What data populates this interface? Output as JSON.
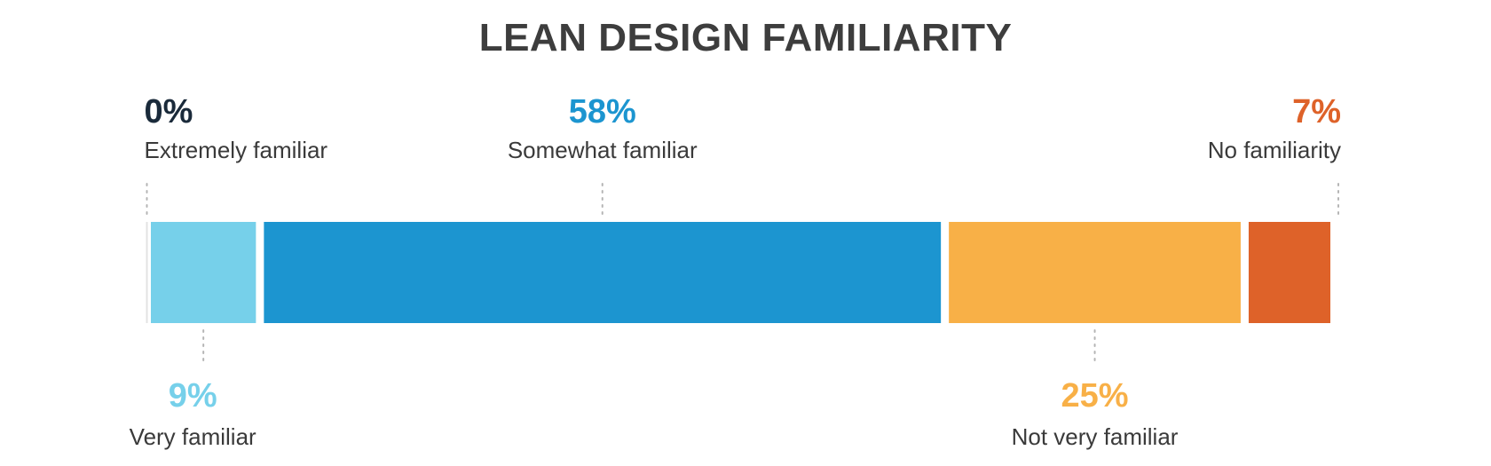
{
  "chart_data": {
    "type": "bar",
    "orientation": "horizontal-stacked",
    "title": "LEAN DESIGN FAMILIARITY",
    "categories": [
      "Extremely familiar",
      "Very familiar",
      "Somewhat familiar",
      "Not very familiar",
      "No familiarity"
    ],
    "values": [
      0,
      9,
      58,
      25,
      7
    ],
    "value_labels": [
      "0%",
      "9%",
      "58%",
      "25%",
      "7%"
    ],
    "label_positions": [
      "top",
      "bottom",
      "top",
      "bottom",
      "top"
    ],
    "colors": [
      "#1a2a3a",
      "#76d0ea",
      "#1c95d0",
      "#f8b047",
      "#de6229"
    ],
    "label_colors": [
      "#1a2a3a",
      "#76d0ea",
      "#1c95d0",
      "#f8b047",
      "#de6229"
    ],
    "xlabel": "",
    "ylabel": "",
    "grid": false
  }
}
